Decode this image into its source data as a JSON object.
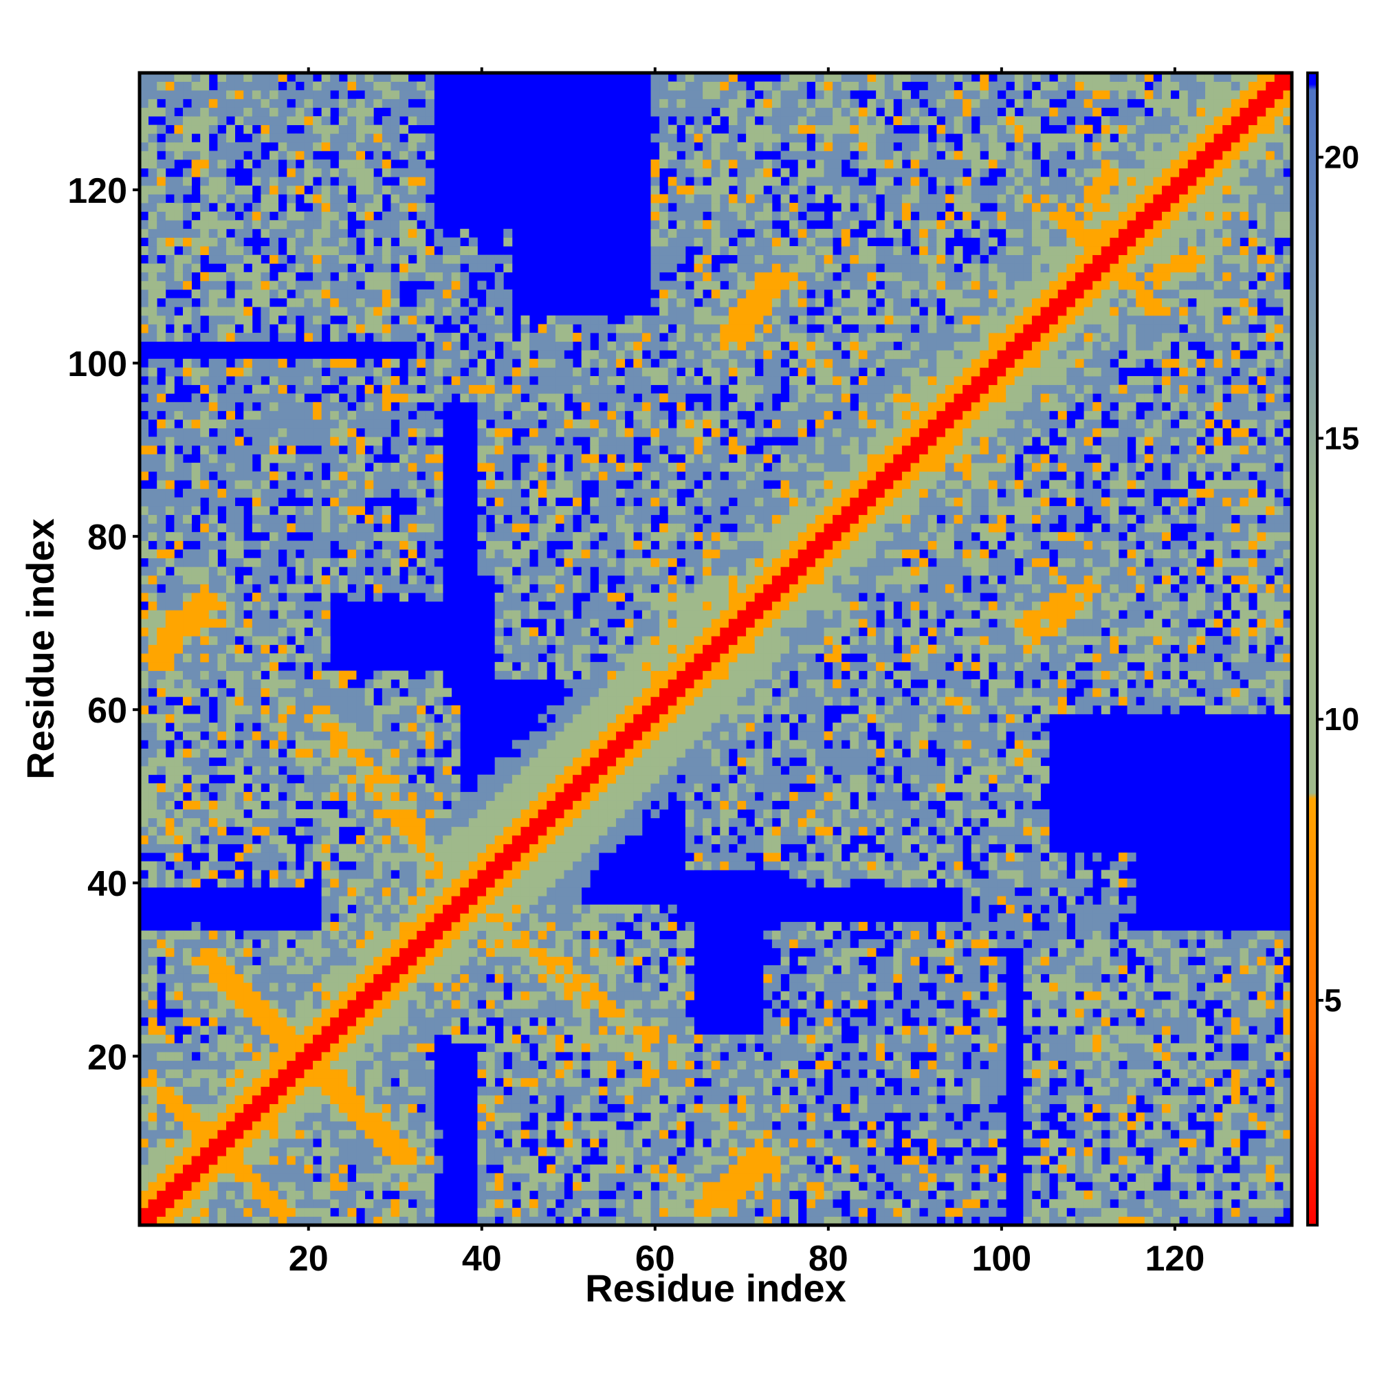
{
  "chart_data": {
    "type": "heatmap",
    "title": "",
    "xlabel": "Residue index",
    "ylabel": "Residue index",
    "n_residues": 133,
    "xlim": [
      1,
      133
    ],
    "ylim": [
      1,
      133
    ],
    "x_ticks": [
      20,
      40,
      60,
      80,
      100,
      120
    ],
    "y_ticks": [
      20,
      40,
      60,
      80,
      100,
      120
    ],
    "colorbar": {
      "placement": "right",
      "range": [
        1,
        21.5
      ],
      "ticks": [
        5,
        10,
        15,
        20
      ],
      "colors": {
        "red": "#ff0000",
        "orange": "#ffa500",
        "sage": "#9fb98b",
        "steel": "#6f8fb4",
        "blue": "#0000ff"
      }
    },
    "grid": false,
    "contact_segments": [
      {
        "from": [
          2,
          17
        ],
        "to": [
          16,
          3
        ],
        "value": 6
      },
      {
        "from": [
          9,
          31
        ],
        "to": [
          31,
          8
        ],
        "value": 6
      },
      {
        "from": [
          22,
          59
        ],
        "to": [
          33,
          45
        ],
        "value": 7
      },
      {
        "from": [
          2,
          66
        ],
        "to": [
          8,
          73
        ],
        "value": 6
      },
      {
        "from": [
          103,
          70
        ],
        "to": [
          110,
          74
        ],
        "value": 6
      },
      {
        "from": [
          66,
          3
        ],
        "to": [
          72,
          9
        ],
        "value": 6
      },
      {
        "from": [
          68,
          103
        ],
        "to": [
          74,
          110
        ],
        "value": 6
      },
      {
        "from": [
          107,
          117
        ],
        "to": [
          116,
          108
        ],
        "value": 6
      },
      {
        "from": [
          110,
          118
        ],
        "to": [
          112,
          122
        ],
        "value": 6
      },
      {
        "from": [
          88,
          96
        ],
        "to": [
          92,
          91
        ],
        "value": 7
      },
      {
        "from": [
          40,
          36
        ],
        "to": [
          46,
          31
        ],
        "value": 8
      }
    ],
    "contact_regions": [
      {
        "x": [
          1,
          34
        ],
        "y": [
          1,
          34
        ],
        "value": 12
      },
      {
        "x": [
          1,
          13
        ],
        "y": [
          40,
          80
        ],
        "value": 12
      },
      {
        "x": [
          1,
          33
        ],
        "y": [
          103,
          128
        ],
        "value": 12
      },
      {
        "x": [
          19,
          35
        ],
        "y": [
          40,
          64
        ],
        "value": 12
      },
      {
        "x": [
          40,
          78
        ],
        "y": [
          1,
          22
        ],
        "value": 13
      },
      {
        "x": [
          35,
          62
        ],
        "y": [
          22,
          37
        ],
        "value": 12
      },
      {
        "x": [
          42,
          82
        ],
        "y": [
          64,
          105
        ],
        "value": 13
      },
      {
        "x": [
          66,
          86
        ],
        "y": [
          96,
          133
        ],
        "value": 12
      },
      {
        "x": [
          65,
          133
        ],
        "y": [
          60,
          96
        ],
        "value": 13
      },
      {
        "x": [
          76,
          105
        ],
        "y": [
          40,
          64
        ],
        "value": 13
      },
      {
        "x": [
          95,
          133
        ],
        "y": [
          98,
          133
        ],
        "value": 12
      },
      {
        "x": [
          104,
          133
        ],
        "y": [
          1,
          34
        ],
        "value": 13
      },
      {
        "x": [
          73,
          100
        ],
        "y": [
          1,
          35
        ],
        "value": 14
      },
      {
        "x": [
          33,
          43
        ],
        "y": [
          96,
          115
        ],
        "value": 15
      }
    ]
  }
}
